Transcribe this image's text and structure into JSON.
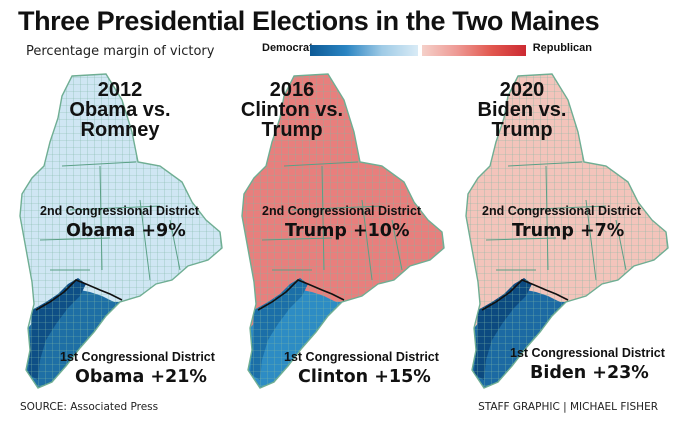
{
  "title": "Three Presidential Elections in the Two Maines",
  "subtitle": "Percentage margin of victory",
  "legend": {
    "democrat_label": "Democrat",
    "republican_label": "Republican",
    "democrat_colors": [
      "#0d5a96",
      "#2a84c2",
      "#9fcbe6",
      "#d9ebf6"
    ],
    "republican_colors": [
      "#f5d0c9",
      "#ee9a95",
      "#e2584f",
      "#cc2a32"
    ]
  },
  "maps": [
    {
      "year": "2012",
      "matchup_line1": "Obama vs.",
      "matchup_line2": "Romney",
      "district2_label": "2nd Congressional District",
      "district2_result": "Obama +9%",
      "district1_label": "1st Congressional District",
      "district1_result": "Obama +21%",
      "colors": {
        "north": "#cfe6f3",
        "south": "#1e6fa5",
        "coast": "#0e4f86"
      }
    },
    {
      "year": "2016",
      "matchup_line1": "Clinton vs.",
      "matchup_line2": "Trump",
      "district2_label": "2nd Congressional District",
      "district2_result": "Trump +10%",
      "district1_label": "1st Congressional District",
      "district1_result": "Clinton +15%",
      "colors": {
        "north": "#e87f7d",
        "south": "#2d8cc4",
        "coast": "#1b6fa8"
      }
    },
    {
      "year": "2020",
      "matchup_line1": "Biden vs.",
      "matchup_line2": "Trump",
      "district2_label": "2nd Congressional District",
      "district2_result": "Trump  +7%",
      "district1_label": "1st Congressional District",
      "district1_result": "Biden +23%",
      "colors": {
        "north": "#f3c4bb",
        "south": "#1c6aa3",
        "coast": "#0c4a80"
      }
    }
  ],
  "source": "SOURCE: Associated Press",
  "credit": "STAFF GRAPHIC | MICHAEL FISHER"
}
